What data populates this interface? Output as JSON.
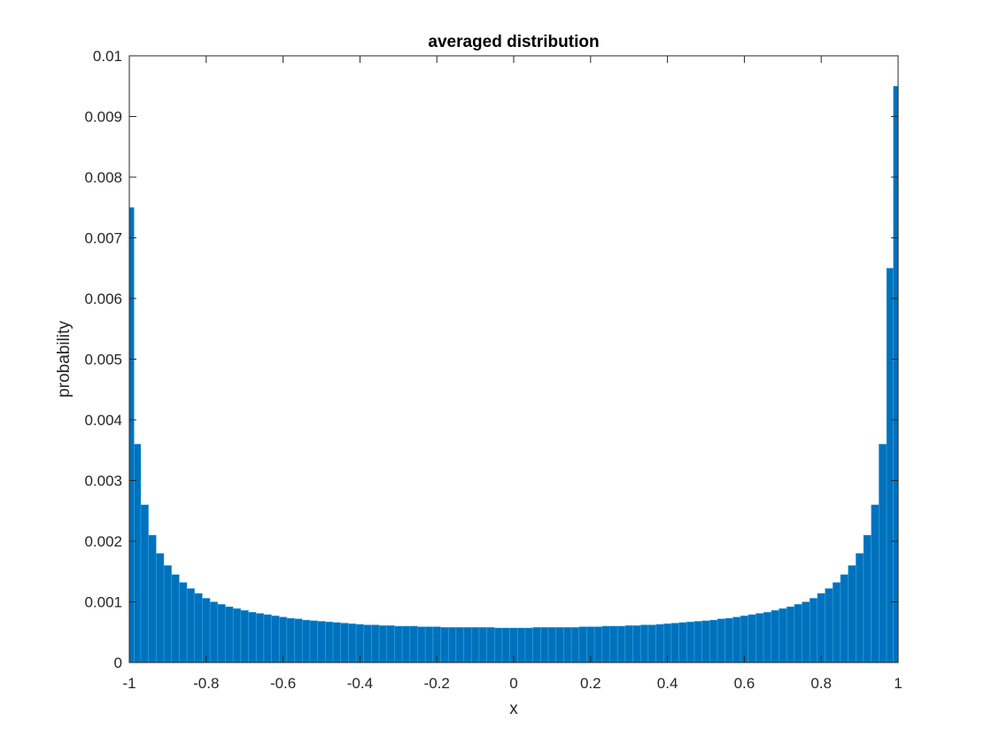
{
  "chart_data": {
    "type": "bar",
    "title": "averaged distribution",
    "xlabel": "x",
    "ylabel": "probability",
    "xlim": [
      -1,
      1
    ],
    "ylim": [
      0,
      0.01
    ],
    "x_ticks": [
      "-1",
      "-0.8",
      "-0.6",
      "-0.4",
      "-0.2",
      "0",
      "0.2",
      "0.4",
      "0.6",
      "0.8",
      "1"
    ],
    "y_ticks": [
      "0",
      "0.001",
      "0.002",
      "0.003",
      "0.004",
      "0.005",
      "0.006",
      "0.007",
      "0.008",
      "0.009",
      "0.01"
    ],
    "grid": false,
    "bar_color": "#0072BD",
    "bar_edge_color": "#4DBEEE",
    "series": [
      {
        "x": [
          -0.995,
          -0.98,
          -0.96,
          -0.94,
          -0.92,
          -0.9,
          -0.88,
          -0.86,
          -0.84,
          -0.82,
          -0.8,
          -0.78,
          -0.76,
          -0.74,
          -0.72,
          -0.7,
          -0.68,
          -0.66,
          -0.64,
          -0.62,
          -0.6,
          -0.58,
          -0.56,
          -0.54,
          -0.52,
          -0.5,
          -0.48,
          -0.46,
          -0.44,
          -0.42,
          -0.4,
          -0.38,
          -0.36,
          -0.34,
          -0.32,
          -0.3,
          -0.28,
          -0.26,
          -0.24,
          -0.22,
          -0.2,
          -0.18,
          -0.16,
          -0.14,
          -0.12,
          -0.1,
          -0.08,
          -0.06,
          -0.04,
          -0.02,
          0,
          0.02,
          0.04,
          0.06,
          0.08,
          0.1,
          0.12,
          0.14,
          0.16,
          0.18,
          0.2,
          0.22,
          0.24,
          0.26,
          0.28,
          0.3,
          0.32,
          0.34,
          0.36,
          0.38,
          0.4,
          0.42,
          0.44,
          0.46,
          0.48,
          0.5,
          0.52,
          0.54,
          0.56,
          0.58,
          0.6,
          0.62,
          0.64,
          0.66,
          0.68,
          0.7,
          0.72,
          0.74,
          0.76,
          0.78,
          0.8,
          0.82,
          0.84,
          0.86,
          0.88,
          0.9,
          0.92,
          0.94,
          0.96,
          0.98,
          0.995
        ],
        "values": [
          0.0075,
          0.0036,
          0.0026,
          0.0021,
          0.0018,
          0.0016,
          0.00145,
          0.00132,
          0.00122,
          0.00114,
          0.00106,
          0.001,
          0.00096,
          0.00092,
          0.00089,
          0.00086,
          0.00083,
          0.00081,
          0.00079,
          0.00077,
          0.00075,
          0.00073,
          0.00072,
          0.0007,
          0.00069,
          0.00068,
          0.00067,
          0.00066,
          0.00065,
          0.00064,
          0.00063,
          0.00062,
          0.00062,
          0.00061,
          0.00061,
          0.0006,
          0.0006,
          0.0006,
          0.00059,
          0.00059,
          0.00059,
          0.00058,
          0.00058,
          0.00058,
          0.00058,
          0.00058,
          0.00058,
          0.00058,
          0.00057,
          0.00057,
          0.00057,
          0.00057,
          0.00057,
          0.00058,
          0.00058,
          0.00058,
          0.00058,
          0.00058,
          0.00058,
          0.00059,
          0.00059,
          0.00059,
          0.0006,
          0.0006,
          0.0006,
          0.00061,
          0.00061,
          0.00062,
          0.00062,
          0.00063,
          0.00064,
          0.00065,
          0.00066,
          0.00067,
          0.00068,
          0.00069,
          0.0007,
          0.00072,
          0.00073,
          0.00075,
          0.00077,
          0.00079,
          0.00081,
          0.00083,
          0.00086,
          0.00089,
          0.00092,
          0.00096,
          0.001,
          0.00106,
          0.00114,
          0.00122,
          0.00132,
          0.00145,
          0.0016,
          0.0018,
          0.0021,
          0.0026,
          0.0036,
          0.0065,
          0.0095
        ]
      }
    ]
  }
}
